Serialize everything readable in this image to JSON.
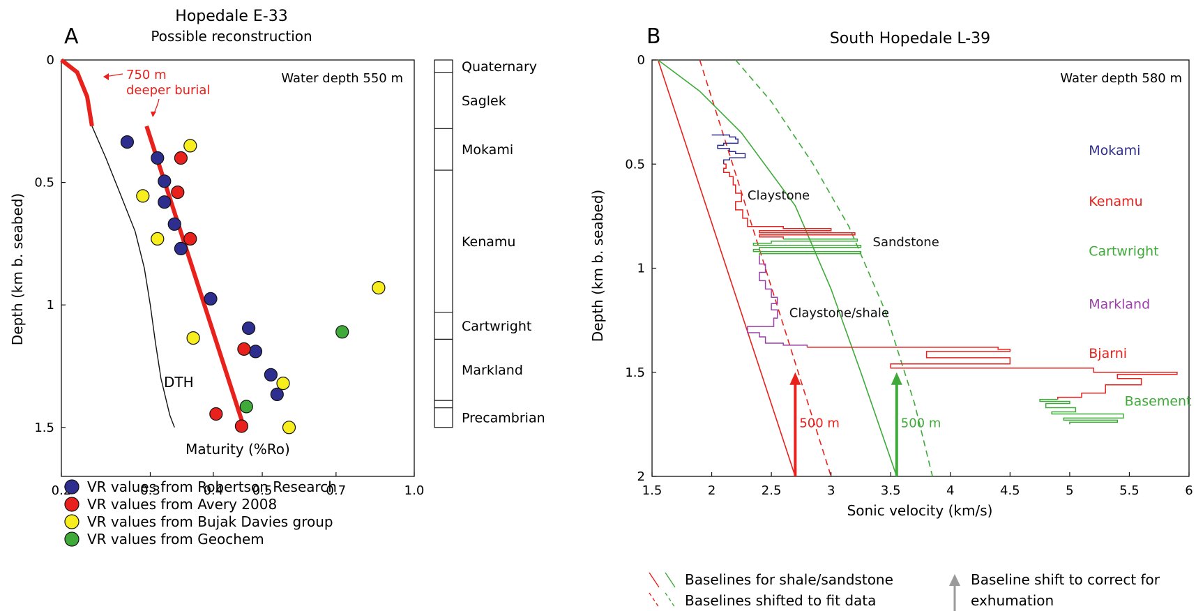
{
  "chart_data": [
    {
      "panel_letter": "A",
      "type": "scatter",
      "title": "Hopedale E-33",
      "subtitle": "Possible reconstruction",
      "xlabel": "Maturity (%Ro)",
      "ylabel": "Depth (km b. seabed)",
      "x_scale": "log",
      "xlim": [
        0.2,
        1.0
      ],
      "ylim": [
        1.7,
        0
      ],
      "x_ticks": [
        0.2,
        0.3,
        0.4,
        0.5,
        0.7,
        1.0
      ],
      "x_tick_labels": [
        "0.2",
        "0.3",
        "0.4",
        "0.5",
        "0.7",
        "1.0"
      ],
      "y_ticks": [
        0,
        0.5,
        1,
        1.5
      ],
      "y_tick_labels": [
        "0",
        "0.5",
        "1",
        "1.5"
      ],
      "water_depth": "Water depth 550 m",
      "annotation": "750 m",
      "annotation2": "deeper burial",
      "dth_label": "DTH",
      "series": [
        {
          "name": "VR values from Robertson Research",
          "color": "#2e2e8f",
          "points": [
            [
              0.27,
              0.335
            ],
            [
              0.31,
              0.4
            ],
            [
              0.32,
              0.495
            ],
            [
              0.32,
              0.58
            ],
            [
              0.335,
              0.67
            ],
            [
              0.345,
              0.77
            ],
            [
              0.395,
              0.975
            ],
            [
              0.47,
              1.095
            ],
            [
              0.485,
              1.19
            ],
            [
              0.52,
              1.285
            ],
            [
              0.535,
              1.365
            ]
          ]
        },
        {
          "name": "VR values from Avery 2008",
          "color": "#e8211c",
          "points": [
            [
              0.345,
              0.4
            ],
            [
              0.34,
              0.54
            ],
            [
              0.36,
              0.73
            ],
            [
              0.46,
              1.18
            ],
            [
              0.405,
              1.445
            ],
            [
              0.455,
              1.495
            ]
          ]
        },
        {
          "name": "VR values from Bujak Davies group",
          "color": "#f8ee1d",
          "points": [
            [
              0.36,
              0.35
            ],
            [
              0.29,
              0.555
            ],
            [
              0.31,
              0.73
            ],
            [
              0.85,
              0.93
            ],
            [
              0.365,
              1.135
            ],
            [
              0.55,
              1.32
            ],
            [
              0.565,
              1.5
            ]
          ]
        },
        {
          "name": "VR values from Geochem",
          "color": "#3faa3a",
          "points": [
            [
              0.72,
              1.11
            ],
            [
              0.465,
              1.415
            ]
          ]
        }
      ],
      "reconstruction_line": {
        "color": "#e8211c",
        "upper": [
          [
            0.2,
            0.0
          ],
          [
            0.215,
            0.05
          ],
          [
            0.225,
            0.15
          ],
          [
            0.23,
            0.27
          ]
        ],
        "lower": [
          [
            0.295,
            0.27
          ],
          [
            0.46,
            1.5
          ]
        ]
      },
      "dth_curve": [
        [
          0.23,
          0.27
        ],
        [
          0.245,
          0.4
        ],
        [
          0.262,
          0.55
        ],
        [
          0.28,
          0.7
        ],
        [
          0.292,
          0.85
        ],
        [
          0.3,
          1.0
        ],
        [
          0.307,
          1.15
        ],
        [
          0.315,
          1.3
        ],
        [
          0.328,
          1.45
        ],
        [
          0.335,
          1.5
        ]
      ],
      "stratigraphy": [
        {
          "name": "Quaternary",
          "top": 0.0,
          "base": 0.05
        },
        {
          "name": "Saglek",
          "top": 0.05,
          "base": 0.28
        },
        {
          "name": "Mokami",
          "top": 0.28,
          "base": 0.45
        },
        {
          "name": "Kenamu",
          "top": 0.45,
          "base": 1.03
        },
        {
          "name": "Cartwright",
          "top": 1.03,
          "base": 1.14
        },
        {
          "name": "Markland",
          "top": 1.14,
          "base": 1.39
        },
        {
          "name": "",
          "top": 1.39,
          "base": 1.42
        },
        {
          "name": "Precambrian",
          "top": 1.42,
          "base": 1.5
        }
      ]
    },
    {
      "panel_letter": "B",
      "type": "line",
      "title": "South Hopedale L-39",
      "xlabel": "Sonic velocity (km/s)",
      "ylabel": "Depth (km b. seabed)",
      "xlim": [
        1.5,
        6
      ],
      "ylim": [
        2,
        0
      ],
      "x_ticks": [
        1.5,
        2,
        2.5,
        3,
        3.5,
        4,
        4.5,
        5,
        5.5,
        6
      ],
      "x_tick_labels": [
        "1.5",
        "2",
        "2.5",
        "3",
        "3.5",
        "4",
        "4.5",
        "5",
        "5.5",
        "6"
      ],
      "y_ticks": [
        0,
        0.5,
        1,
        1.5,
        2
      ],
      "y_tick_labels": [
        "0",
        "0.5",
        "1",
        "1.5",
        "2"
      ],
      "water_depth": "Water depth 580 m",
      "lithology_labels": [
        {
          "text": "Claystone",
          "x": 2.3,
          "y": 0.67
        },
        {
          "text": "Sandstone",
          "x": 3.35,
          "y": 0.895
        },
        {
          "text": "Claystone/shale",
          "x": 2.65,
          "y": 1.235
        }
      ],
      "formation_labels": [
        {
          "text": "Mokami",
          "color": "#2e2e8f",
          "x": 5.16,
          "y": 0.455
        },
        {
          "text": "Kenamu",
          "color": "#e8211c",
          "x": 5.16,
          "y": 0.7
        },
        {
          "text": "Cartwright",
          "color": "#3faa3a",
          "x": 5.16,
          "y": 0.94
        },
        {
          "text": "Markland",
          "color": "#9b3fa8",
          "x": 5.16,
          "y": 1.195
        },
        {
          "text": "Bjarni",
          "color": "#e8211c",
          "x": 5.16,
          "y": 1.43
        },
        {
          "text": "Basement",
          "color": "#3faa3a",
          "x": 5.46,
          "y": 1.66
        }
      ],
      "baselines": [
        {
          "style": "solid",
          "color": "#e8211c",
          "points": [
            [
              1.55,
              0
            ],
            [
              2.7,
              2
            ]
          ]
        },
        {
          "style": "dashed",
          "color": "#e8211c",
          "points": [
            [
              1.9,
              0
            ],
            [
              3.0,
              2
            ]
          ]
        },
        {
          "style": "solid",
          "color": "#3faa3a",
          "points": [
            [
              1.55,
              0
            ],
            [
              1.9,
              0.15
            ],
            [
              2.25,
              0.35
            ],
            [
              2.7,
              0.7
            ],
            [
              3.0,
              1.1
            ],
            [
              3.25,
              1.5
            ],
            [
              3.55,
              2
            ]
          ]
        },
        {
          "style": "dashed",
          "color": "#3faa3a",
          "points": [
            [
              2.2,
              0
            ],
            [
              2.5,
              0.2
            ],
            [
              2.85,
              0.5
            ],
            [
              3.15,
              0.8
            ],
            [
              3.45,
              1.2
            ],
            [
              3.7,
              1.65
            ],
            [
              3.85,
              2
            ]
          ]
        }
      ],
      "arrows": [
        {
          "color": "#e8211c",
          "x": 2.7,
          "y_from": 2,
          "y_to": 1.5,
          "label": "500 m"
        },
        {
          "color": "#3faa3a",
          "x": 3.55,
          "y_from": 2,
          "y_to": 1.5,
          "label": "500 m"
        }
      ],
      "log_segments": [
        {
          "color": "#2e2e8f",
          "points": [
            [
              2.0,
              0.36
            ],
            [
              2.15,
              0.37
            ],
            [
              2.2,
              0.38
            ],
            [
              2.22,
              0.4
            ],
            [
              2.1,
              0.41
            ],
            [
              2.05,
              0.425
            ],
            [
              2.15,
              0.44
            ],
            [
              2.2,
              0.45
            ],
            [
              2.28,
              0.47
            ],
            [
              2.15,
              0.48
            ],
            [
              2.1,
              0.5
            ]
          ]
        },
        {
          "color": "#e8211c",
          "points": [
            [
              2.1,
              0.5
            ],
            [
              2.12,
              0.52
            ],
            [
              2.1,
              0.54
            ],
            [
              2.15,
              0.56
            ],
            [
              2.18,
              0.6
            ],
            [
              2.2,
              0.64
            ],
            [
              2.25,
              0.68
            ],
            [
              2.2,
              0.72
            ],
            [
              2.26,
              0.76
            ],
            [
              2.3,
              0.8
            ],
            [
              2.6,
              0.81
            ],
            [
              3.0,
              0.82
            ],
            [
              2.4,
              0.83
            ],
            [
              3.2,
              0.84
            ],
            [
              2.4,
              0.85
            ],
            [
              2.6,
              0.86
            ]
          ]
        },
        {
          "color": "#3faa3a",
          "points": [
            [
              2.6,
              0.86
            ],
            [
              3.22,
              0.87
            ],
            [
              2.5,
              0.88
            ],
            [
              2.35,
              0.89
            ],
            [
              3.25,
              0.9
            ],
            [
              2.4,
              0.91
            ],
            [
              2.35,
              0.92
            ],
            [
              3.25,
              0.93
            ],
            [
              2.4,
              0.94
            ]
          ]
        },
        {
          "color": "#9b3fa8",
          "points": [
            [
              2.4,
              0.94
            ],
            [
              2.4,
              0.98
            ],
            [
              2.45,
              1.02
            ],
            [
              2.4,
              1.06
            ],
            [
              2.45,
              1.1
            ],
            [
              2.5,
              1.14
            ],
            [
              2.55,
              1.17
            ],
            [
              2.5,
              1.2
            ],
            [
              2.55,
              1.24
            ],
            [
              2.52,
              1.28
            ],
            [
              2.3,
              1.31
            ],
            [
              2.4,
              1.33
            ],
            [
              2.45,
              1.36
            ],
            [
              2.6,
              1.37
            ],
            [
              2.8,
              1.38
            ]
          ]
        },
        {
          "color": "#e8211c",
          "points": [
            [
              2.8,
              1.38
            ],
            [
              4.4,
              1.39
            ],
            [
              4.5,
              1.4
            ],
            [
              3.8,
              1.43
            ],
            [
              4.5,
              1.46
            ],
            [
              3.5,
              1.48
            ],
            [
              5.2,
              1.5
            ],
            [
              5.9,
              1.51
            ],
            [
              5.4,
              1.53
            ],
            [
              5.6,
              1.56
            ],
            [
              5.3,
              1.6
            ],
            [
              5.1,
              1.62
            ],
            [
              4.9,
              1.63
            ]
          ]
        },
        {
          "color": "#3faa3a",
          "points": [
            [
              4.9,
              1.63
            ],
            [
              4.75,
              1.64
            ],
            [
              5.0,
              1.65
            ],
            [
              4.8,
              1.67
            ],
            [
              5.05,
              1.69
            ],
            [
              4.85,
              1.7
            ],
            [
              5.45,
              1.72
            ],
            [
              4.95,
              1.73
            ],
            [
              5.4,
              1.74
            ],
            [
              5.0,
              1.75
            ]
          ]
        }
      ],
      "legend": {
        "baselines_label": "Baselines for shale/sandstone",
        "shifted_label": "Baselines shifted to fit data",
        "shift_label_line1": "Baseline shift to correct for",
        "shift_label_line2": "exhumation",
        "shift_arrow_color": "#9a9a9a"
      }
    }
  ]
}
